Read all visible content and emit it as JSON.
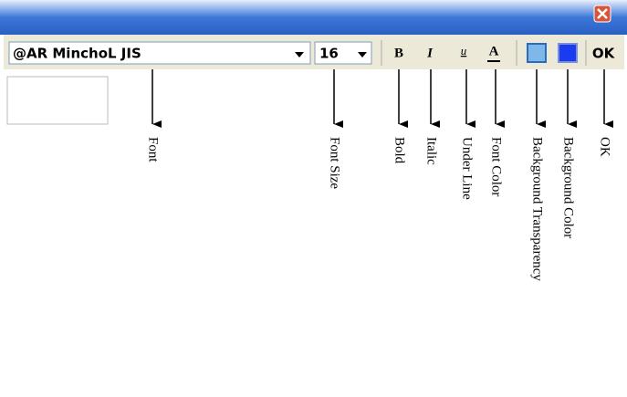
{
  "toolbar": {
    "font": "@AR MinchoL JIS",
    "font_size": "16",
    "bold": "B",
    "italic": "I",
    "underline": "u",
    "font_color": "A",
    "ok": "OK"
  },
  "annotations": [
    "Font",
    "Font Size",
    "Bold",
    "Italic",
    "Under Line",
    "Font Color",
    "Background Transparency",
    "Background Color",
    "OK"
  ]
}
